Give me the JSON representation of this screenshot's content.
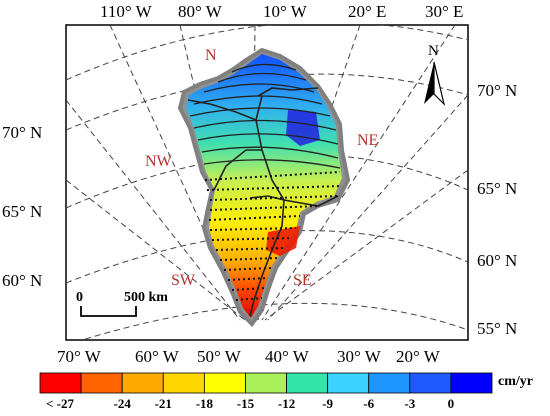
{
  "top_labels": [
    "110° W",
    "80° W",
    "10° W",
    "20° E",
    "30° E"
  ],
  "right_labels": [
    "70° N",
    "65° N",
    "60° N",
    "55° N"
  ],
  "left_labels": [
    "70° N",
    "65° N",
    "60° N"
  ],
  "bottom_labels": [
    "70° W",
    "60° W",
    "50° W",
    "40° W",
    "30° W",
    "20° W"
  ],
  "regions": {
    "n": "N",
    "nw": "NW",
    "ne": "NE",
    "sw": "SW",
    "se": "SE"
  },
  "north_arrow": "N",
  "scale_bar": {
    "zero": "0",
    "label": "500 km"
  },
  "colorbar": {
    "unit": "cm/yr",
    "colors": [
      "#ff0000",
      "#ff6400",
      "#ffaa00",
      "#ffd700",
      "#ffff00",
      "#aaf05a",
      "#32e6aa",
      "#3cd2ff",
      "#1e96ff",
      "#1e5aff",
      "#0000ff"
    ],
    "ticks": [
      "< -27",
      "-24",
      "-21",
      "-18",
      "-15",
      "-12",
      "-9",
      "-6",
      "-3",
      "0"
    ]
  }
}
